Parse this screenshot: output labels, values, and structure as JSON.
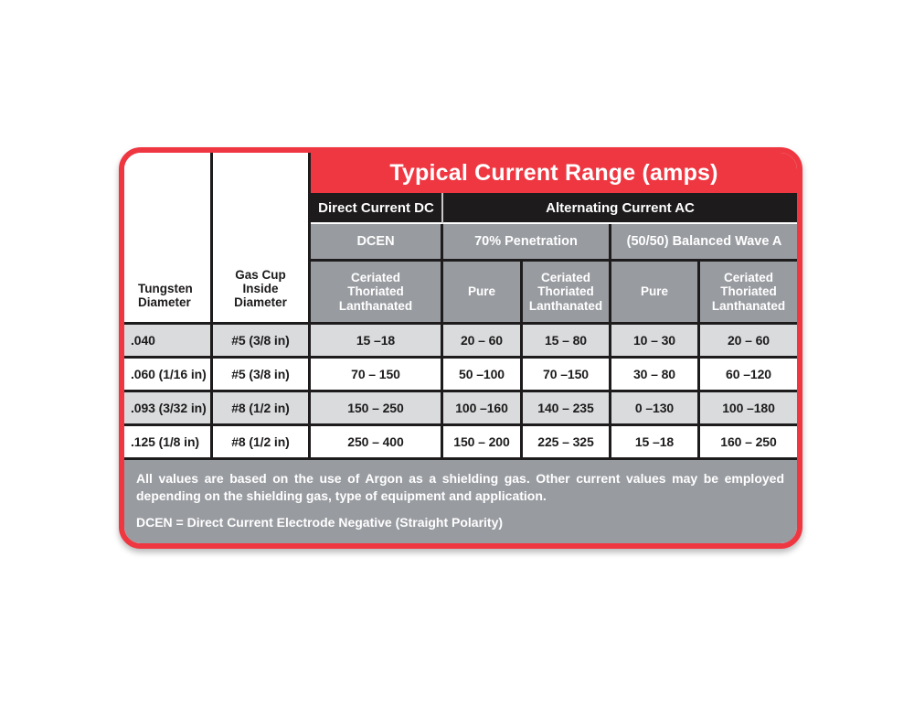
{
  "colors": {
    "border_red": "#EF3742",
    "band_black": "#1d1b1c",
    "band_gray": "#989BA0",
    "row_light_gray": "#D9DBDD",
    "text_white": "#FFFFFF",
    "text_black": "#1d1b1c"
  },
  "chart_data": {
    "type": "table",
    "title": "Typical Current Range (amps)",
    "row_headers": [
      "Tungsten Diameter",
      "Gas Cup Inside Diameter"
    ],
    "group_headers": {
      "dc": "Direct Current DC",
      "ac": "Alternating Current AC"
    },
    "mode_headers": {
      "dcen": "DCEN",
      "penetration": "70% Penetration",
      "balanced_wave": "(50/50) Balanced Wave A"
    },
    "electrode_headers": [
      "Ceriated Thoriated Lanthanated",
      "Pure",
      "Ceriated Thoriated Lanthanated",
      "Pure",
      "Ceriated Thoriated Lanthanated"
    ],
    "rows": [
      {
        "cells": [
          ".040",
          "#5 (3/8 in)",
          "15 –18",
          "20 – 60",
          "15 – 80",
          "10 – 30",
          "20 – 60"
        ]
      },
      {
        "cells": [
          ".060 (1/16 in)",
          "#5 (3/8 in)",
          "70 – 150",
          "50 –100",
          "70 –150",
          "30 – 80",
          "60 –120"
        ]
      },
      {
        "cells": [
          ".093 (3/32 in)",
          "#8 (1/2 in)",
          "150 – 250",
          "100 –160",
          "140 – 235",
          "0 –130",
          "100 –180"
        ]
      },
      {
        "cells": [
          ".125 (1/8 in)",
          "#8 (1/2 in)",
          "250 – 400",
          "150 – 200",
          "225 – 325",
          "15 –18",
          "160 – 250"
        ]
      }
    ],
    "notes": [
      "All values are based on the use of Argon as a shielding gas. Other current values may be employed depending on the shielding gas, type of equipment and application.",
      "DCEN = Direct Current Electrode Negative (Straight Polarity)"
    ]
  }
}
